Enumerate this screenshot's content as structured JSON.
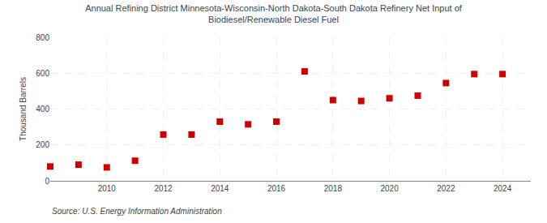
{
  "chart_data": {
    "type": "scatter",
    "title": "Annual Refining District Minnesota-Wisconsin-North Dakota-South Dakota Refinery Net Input of\nBiodiesel/Renewable Diesel Fuel",
    "ylabel": "Thousand Barrels",
    "annotations": [
      "Source: U.S. Energy Information Administration"
    ],
    "x": [
      2008,
      2009,
      2010,
      2011,
      2012,
      2013,
      2014,
      2015,
      2016,
      2017,
      2018,
      2019,
      2020,
      2021,
      2022,
      2023,
      2024
    ],
    "values": [
      80,
      90,
      75,
      112,
      258,
      258,
      330,
      315,
      330,
      610,
      450,
      445,
      460,
      475,
      545,
      595,
      595
    ],
    "color": "#cc0000",
    "marker": "square",
    "xlim": [
      2008.0,
      2025.0
    ],
    "ylim": [
      0,
      800
    ],
    "xticks": [
      2010,
      2012,
      2014,
      2016,
      2018,
      2020,
      2022,
      2024
    ],
    "yticks": [
      0,
      200,
      400,
      600,
      800
    ],
    "grid": true
  }
}
